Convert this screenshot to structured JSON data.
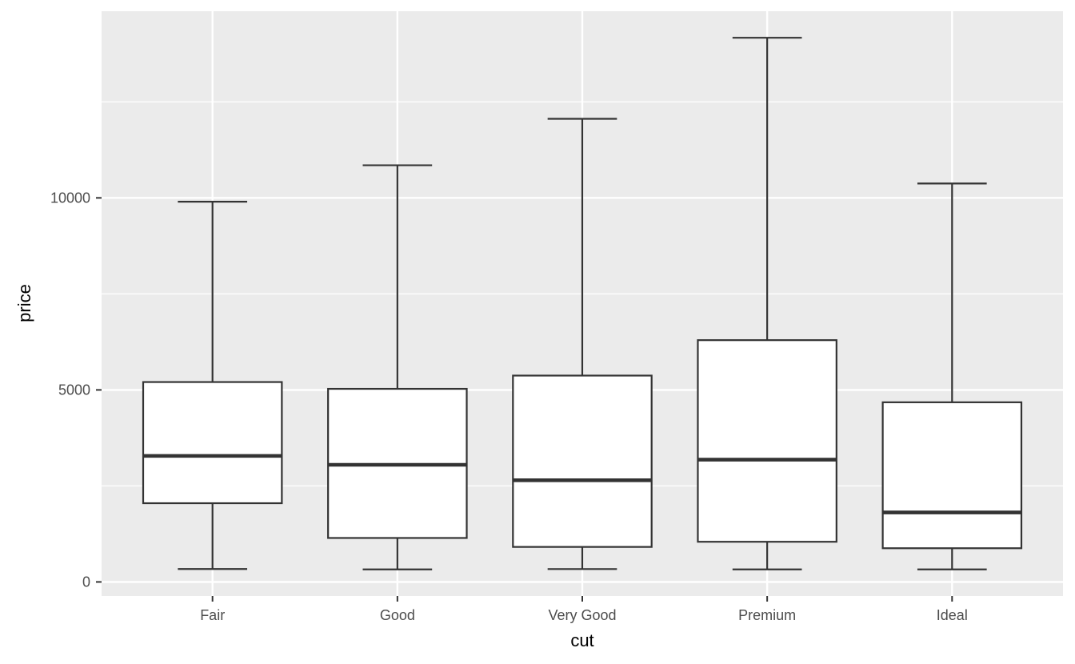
{
  "figure": {
    "background": "#FFFFFF",
    "kind": "ggplot-style boxplot"
  },
  "chart_data": {
    "type": "boxplot",
    "title": "",
    "xlabel": "cut",
    "ylabel": "price",
    "categories": [
      "Fair",
      "Good",
      "Very Good",
      "Premium",
      "Ideal"
    ],
    "series": [
      {
        "name": "Fair",
        "whisker_low": 337,
        "q1": 2050,
        "median": 3282,
        "q3": 5205,
        "whisker_high": 9900
      },
      {
        "name": "Good",
        "whisker_low": 327,
        "q1": 1145,
        "median": 3050,
        "q3": 5028,
        "whisker_high": 10850
      },
      {
        "name": "Very Good",
        "whisker_low": 336,
        "q1": 912,
        "median": 2648,
        "q3": 5373,
        "whisker_high": 12060
      },
      {
        "name": "Premium",
        "whisker_low": 326,
        "q1": 1046,
        "median": 3185,
        "q3": 6296,
        "whisker_high": 14170
      },
      {
        "name": "Ideal",
        "whisker_low": 326,
        "q1": 878,
        "median": 1810,
        "q3": 4678,
        "whisker_high": 10375
      }
    ],
    "y_ticks": [
      0,
      5000,
      10000
    ],
    "y_tick_labels": [
      "0",
      "5000",
      "10000"
    ],
    "y_minor_gridlines": [
      2500,
      7500,
      12500
    ],
    "ylim": [
      -366,
      14861
    ],
    "legend_position": "none",
    "grid": "white major and minor horizontal lines, white vertical line per category, on gray panel",
    "outliers_shown": false
  },
  "style": {
    "panel_bg": "#EBEBEB",
    "gridline_color": "#FFFFFF",
    "box_stroke": "#333333",
    "box_fill": "#FFFFFF",
    "axis_text_color": "#4D4D4D",
    "axis_title_color": "#000000",
    "tick_mark_color": "#333333"
  }
}
